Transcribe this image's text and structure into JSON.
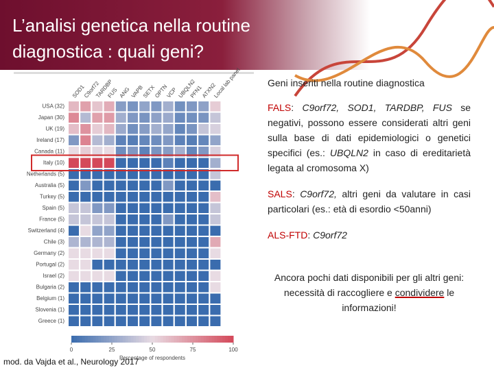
{
  "header": {
    "title_lines": [
      "L’analisi genetica nella routine",
      "diagnostica : quali geni?"
    ]
  },
  "chart_data": {
    "type": "heatmap",
    "x_categories": [
      "SOD1",
      "C9orf72",
      "TARDBP",
      "FUS",
      "ANG",
      "VAPB",
      "SETX",
      "OPTN",
      "VCP",
      "UBQLN2",
      "PFN1",
      "ATXN2",
      "Local lab panel"
    ],
    "y_categories": [
      "USA (32)",
      "Japan (30)",
      "UK (19)",
      "Ireland (17)",
      "Canada (11)",
      "Italy (10)",
      "Netherlands (5)",
      "Australia (5)",
      "Turkey (5)",
      "Spain (5)",
      "France (5)",
      "Switzerland (4)",
      "Chile (3)",
      "Germany (2)",
      "Portugal (2)",
      "Israel (2)",
      "Bulgaria (2)",
      "Belgium (1)",
      "Slovenia (1)",
      "Greece (1)"
    ],
    "values": [
      [
        62,
        70,
        58,
        66,
        22,
        18,
        25,
        20,
        30,
        16,
        20,
        24,
        55
      ],
      [
        78,
        35,
        70,
        72,
        30,
        20,
        18,
        24,
        28,
        14,
        16,
        18,
        40
      ],
      [
        60,
        75,
        55,
        62,
        28,
        16,
        22,
        30,
        26,
        12,
        18,
        40,
        45
      ],
      [
        20,
        80,
        35,
        30,
        10,
        8,
        12,
        15,
        20,
        10,
        8,
        12,
        25
      ],
      [
        50,
        55,
        48,
        50,
        15,
        20,
        10,
        18,
        22,
        30,
        12,
        20,
        45
      ],
      [
        100,
        100,
        100,
        100,
        0,
        0,
        0,
        0,
        10,
        0,
        0,
        0,
        30
      ],
      [
        0,
        0,
        0,
        0,
        0,
        0,
        0,
        0,
        0,
        0,
        0,
        0,
        40
      ],
      [
        0,
        20,
        0,
        0,
        0,
        0,
        0,
        0,
        20,
        0,
        0,
        0,
        0
      ],
      [
        0,
        0,
        0,
        0,
        0,
        0,
        0,
        0,
        0,
        0,
        0,
        0,
        60
      ],
      [
        40,
        40,
        20,
        20,
        0,
        0,
        0,
        0,
        0,
        0,
        0,
        0,
        40
      ],
      [
        40,
        40,
        40,
        40,
        0,
        0,
        0,
        0,
        20,
        0,
        0,
        0,
        40
      ],
      [
        0,
        50,
        25,
        25,
        0,
        0,
        0,
        0,
        0,
        0,
        0,
        0,
        0
      ],
      [
        33,
        33,
        33,
        33,
        0,
        0,
        0,
        0,
        0,
        0,
        0,
        0,
        67
      ],
      [
        50,
        50,
        50,
        50,
        0,
        0,
        0,
        0,
        0,
        0,
        0,
        0,
        50
      ],
      [
        50,
        50,
        0,
        0,
        0,
        0,
        0,
        0,
        0,
        0,
        0,
        0,
        0
      ],
      [
        50,
        50,
        50,
        50,
        0,
        0,
        0,
        0,
        0,
        0,
        0,
        0,
        50
      ],
      [
        0,
        0,
        0,
        0,
        0,
        0,
        0,
        0,
        0,
        0,
        0,
        0,
        50
      ],
      [
        0,
        0,
        0,
        0,
        0,
        0,
        0,
        0,
        0,
        0,
        0,
        0,
        0
      ],
      [
        0,
        0,
        0,
        0,
        0,
        0,
        0,
        0,
        0,
        0,
        0,
        0,
        0
      ],
      [
        0,
        0,
        0,
        0,
        0,
        0,
        0,
        0,
        0,
        0,
        0,
        0,
        0
      ]
    ],
    "colors": [
      "#3a6cae",
      "#e8dbe3",
      "#d4495a"
    ],
    "clim": [
      0,
      100
    ],
    "cticks": [
      0,
      25,
      50,
      75,
      100
    ],
    "xlabel": "Percentage of respondents",
    "highlight_row": 5,
    "highlight_color": "#d02a2a"
  },
  "caption": "mod. da Vajda et al., Neurology 2017",
  "text": {
    "paragraphs": [
      {
        "segments": [
          {
            "text": "Geni inseriti nella routine diagnostica"
          }
        ]
      },
      {
        "segments": [
          {
            "text": "FALS",
            "color": "#c00000"
          },
          {
            "text": ": "
          },
          {
            "text": "C9orf72, SOD1, TARDBP, FUS",
            "italic": true
          },
          {
            "text": " se negativi, possono essere considerati altri geni sulla base di dati epidemiologici o genetici specifici (es.: "
          },
          {
            "text": "UBQLN2",
            "italic": true
          },
          {
            "text": " in caso di ereditarietà legata al cromosoma X)"
          }
        ]
      },
      {
        "segments": [
          {
            "text": "SALS",
            "color": "#c00000"
          },
          {
            "text": ": "
          },
          {
            "text": "C9orf72,",
            "italic": true
          },
          {
            "text": " altri geni da valutare in casi particolari (es.: età di esordio <50anni)"
          }
        ]
      },
      {
        "segments": [
          {
            "text": "ALS-FTD",
            "color": "#c00000"
          },
          {
            "text": ": "
          },
          {
            "text": "C9orf72",
            "italic": true
          }
        ]
      },
      {
        "segments": [
          {
            "text": "Ancora pochi dati disponibili per gli altri geni: necessità di raccogliere e "
          },
          {
            "text": "condividere",
            "underline": "#c00000"
          },
          {
            "text": " le informazioni!"
          }
        ],
        "align": "center"
      }
    ]
  }
}
